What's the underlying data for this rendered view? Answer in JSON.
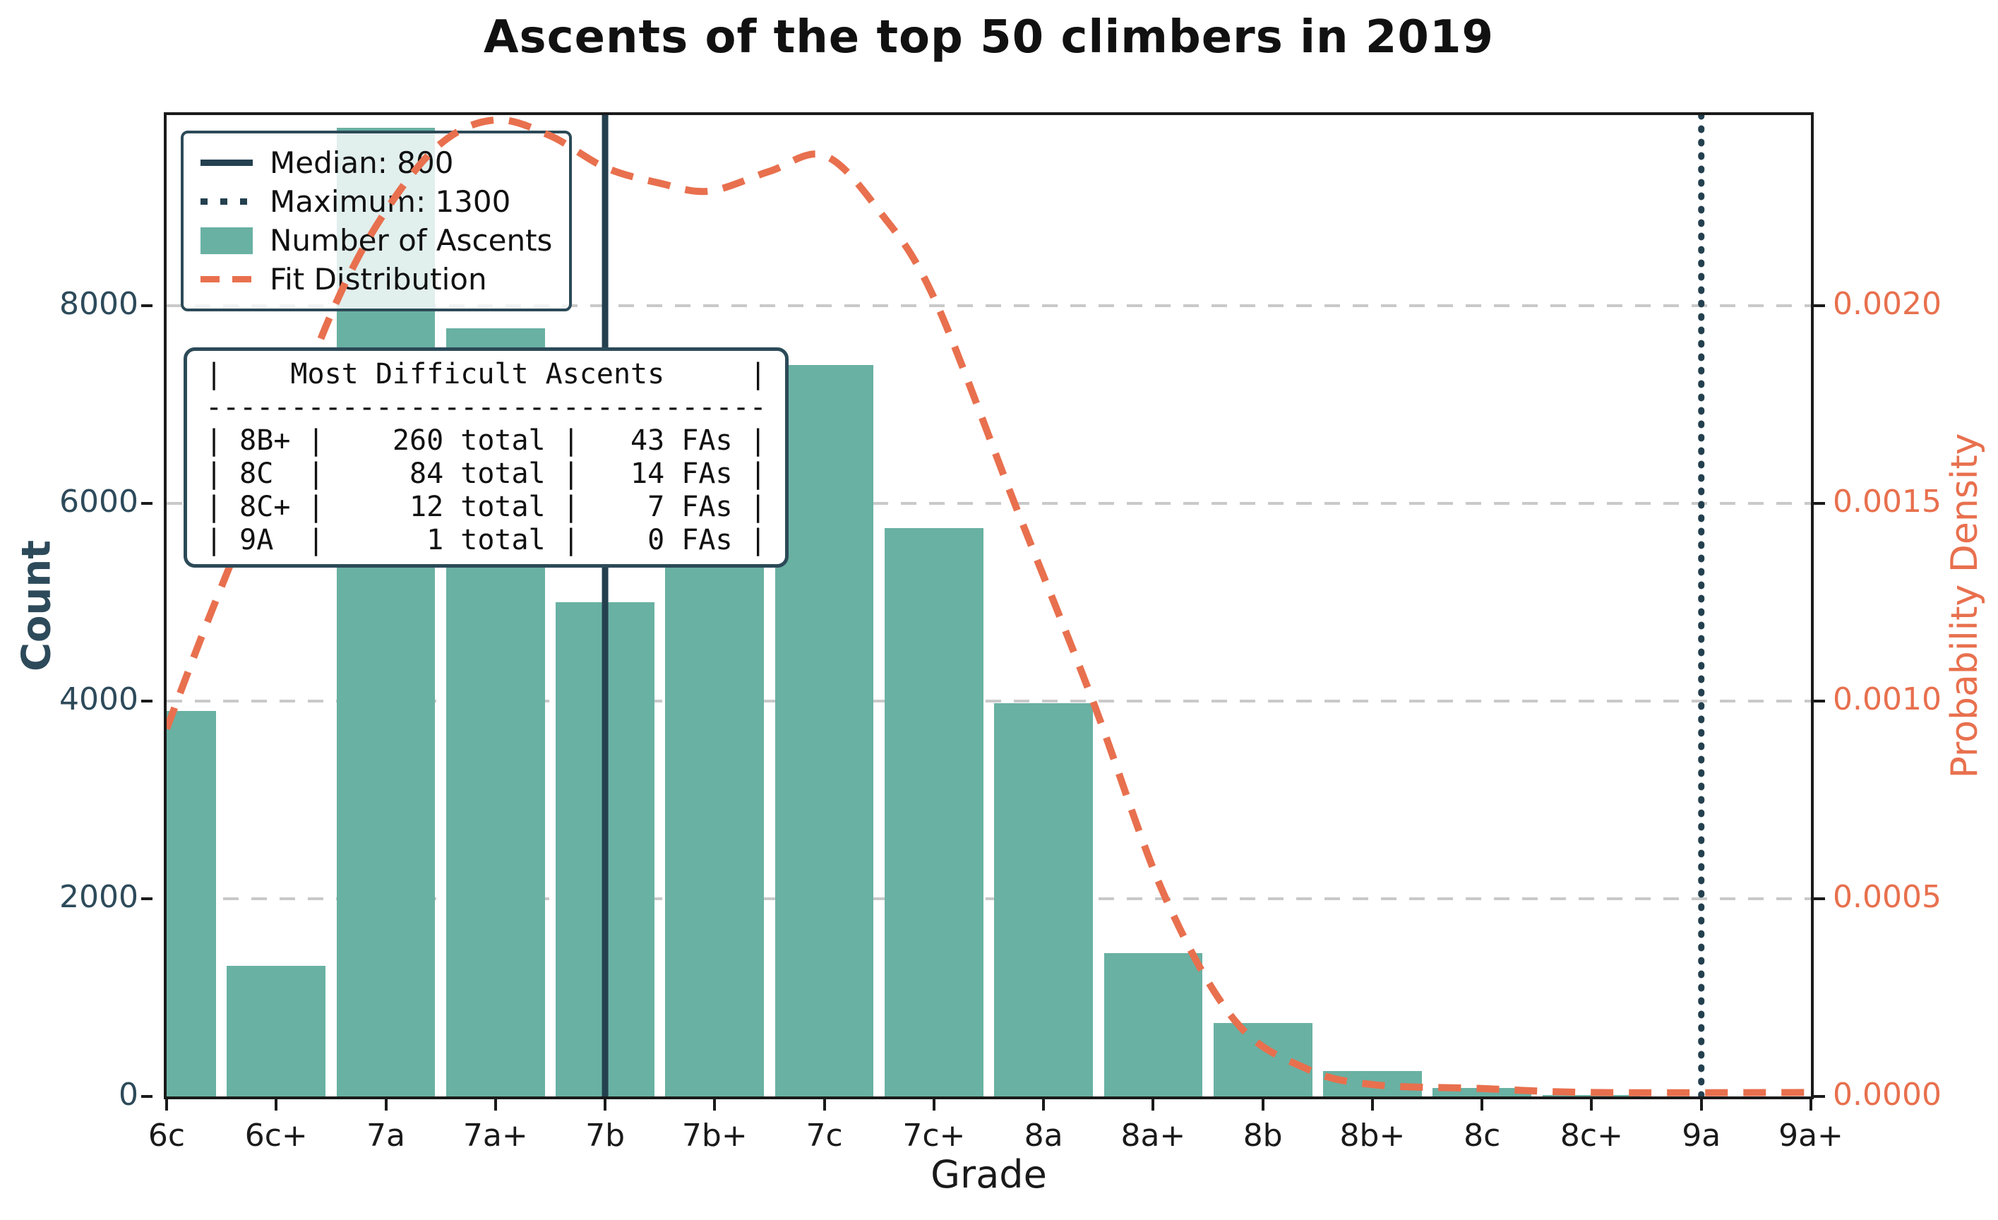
{
  "title": "Ascents of the top 50 climbers in 2019",
  "colors": {
    "bar": "#69b1a3",
    "dark_line": "#24404f",
    "legend_border": "#2c4a58",
    "orange": "#e8704e",
    "grid": "#c9c9c9",
    "left_tick_text": "#2d4a5a",
    "x_tick_text": "#1a1a1a"
  },
  "legend": {
    "items": [
      {
        "key": "median",
        "label": "Median: 800",
        "swatch": "solid-line"
      },
      {
        "key": "maximum",
        "label": "Maximum: 1300",
        "swatch": "dotted-line"
      },
      {
        "key": "ascents",
        "label": "Number of Ascents",
        "swatch": "filled-rect"
      },
      {
        "key": "fit",
        "label": "Fit Distribution",
        "swatch": "dashed-line"
      }
    ]
  },
  "info_table": {
    "lines": [
      "|    Most Difficult Ascents     |",
      "---------------------------------",
      "| 8B+ |    260 total |   43 FAs |",
      "| 8C  |     84 total |   14 FAs |",
      "| 8C+ |     12 total |    7 FAs |",
      "| 9A  |      1 total |    0 FAs |"
    ]
  },
  "chart_data": {
    "type": "bar",
    "title": "Ascents of the top 50 climbers in 2019",
    "xlabel": "Grade",
    "ylabel_left": "Count",
    "ylabel_right": "Probability Density",
    "categories": [
      "6c",
      "6c+",
      "7a",
      "7a+",
      "7b",
      "7b+",
      "7c",
      "7c+",
      "8a",
      "8a+",
      "8b",
      "8b+",
      "8c",
      "8c+",
      "9a",
      "9a+"
    ],
    "values": [
      3900,
      1320,
      9800,
      7770,
      5000,
      7000,
      7400,
      5750,
      3980,
      1450,
      740,
      260,
      84,
      12,
      1,
      0
    ],
    "ylim_left": [
      0,
      9929
    ],
    "yticks_left": [
      0,
      2000,
      4000,
      6000,
      8000
    ],
    "yticks_right": [
      "0.0000",
      "0.0005",
      "0.0010",
      "0.0015",
      "0.0020"
    ],
    "density_to_count": 4000000,
    "grid": true,
    "legend_position": "upper left",
    "median_line": {
      "x_category": "7b",
      "label": "Median: 800",
      "style": "solid"
    },
    "maximum_line": {
      "x_category": "9a",
      "label": "Maximum: 1300",
      "style": "dotted"
    },
    "kde_series": {
      "name": "Fit Distribution",
      "x_positions": [
        0,
        0.4,
        1.0,
        1.55,
        2.0,
        2.5,
        3.0,
        3.5,
        4.0,
        4.5,
        4.95,
        5.5,
        6.0,
        6.5,
        7.0,
        7.75,
        8.45,
        9.1,
        9.75,
        10.4,
        11.0,
        12.0,
        13.0,
        15.0
      ],
      "densities": [
        0.00093,
        0.00122,
        0.00163,
        0.00201,
        0.00224,
        0.00241,
        0.00247,
        0.00243,
        0.00235,
        0.00231,
        0.00229,
        0.00234,
        0.00238,
        0.00224,
        0.00202,
        0.00149,
        0.001,
        0.00051,
        0.00019,
        7e-05,
        3e-05,
        2e-05,
        1e-05,
        1e-05
      ]
    }
  }
}
